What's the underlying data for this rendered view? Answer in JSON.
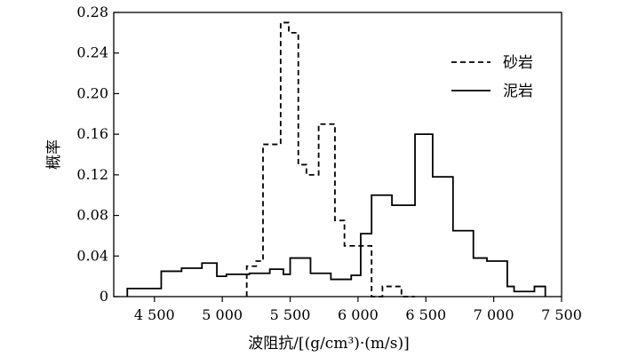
{
  "chart_data": {
    "type": "line",
    "step": true,
    "xlabel": "波阻抗/[(g/cm³)·(m/s)]",
    "ylabel": "概率",
    "xlim": [
      4200,
      7500
    ],
    "ylim": [
      0,
      0.28
    ],
    "xticks": [
      4500,
      5000,
      5500,
      6000,
      6500,
      7000,
      7500
    ],
    "xtick_labels": [
      "4 500",
      "5 000",
      "5 500",
      "6 000",
      "6 500",
      "7 000",
      "7 500"
    ],
    "yticks": [
      0,
      0.04,
      0.08,
      0.12,
      0.16,
      0.2,
      0.24,
      0.28
    ],
    "ytick_labels": [
      "0",
      "0.04",
      "0.08",
      "0.12",
      "0.16",
      "0.20",
      "0.24",
      "0.28"
    ],
    "legend_position": "top-right",
    "series": [
      {
        "name": "砂岩",
        "style": "dashed",
        "bin_edges": [
          5180,
          5250,
          5300,
          5380,
          5430,
          5490,
          5560,
          5620,
          5670,
          5710,
          5780,
          5830,
          5900,
          6010,
          6100,
          6180,
          6320,
          6420
        ],
        "values": [
          0.03,
          0.035,
          0.15,
          0.15,
          0.27,
          0.26,
          0.13,
          0.12,
          0.12,
          0.17,
          0.17,
          0.075,
          0.05,
          0.05,
          0.0,
          0.01,
          0.0
        ]
      },
      {
        "name": "泥岩",
        "style": "solid",
        "bin_edges": [
          4300,
          4420,
          4550,
          4620,
          4700,
          4800,
          4850,
          4910,
          4960,
          5030,
          5120,
          5200,
          5280,
          5350,
          5450,
          5500,
          5580,
          5650,
          5700,
          5800,
          5850,
          5950,
          6020,
          6060,
          6100,
          6170,
          6250,
          6350,
          6420,
          6500,
          6550,
          6650,
          6700,
          6800,
          6850,
          6950,
          7000,
          7100,
          7150,
          7250,
          7300,
          7380
        ],
        "values": [
          0.008,
          0.008,
          0.025,
          0.025,
          0.028,
          0.028,
          0.033,
          0.033,
          0.02,
          0.022,
          0.022,
          0.023,
          0.023,
          0.027,
          0.022,
          0.038,
          0.038,
          0.023,
          0.023,
          0.017,
          0.017,
          0.021,
          0.062,
          0.062,
          0.1,
          0.1,
          0.09,
          0.09,
          0.16,
          0.16,
          0.118,
          0.118,
          0.065,
          0.065,
          0.038,
          0.035,
          0.035,
          0.01,
          0.005,
          0.005,
          0.01
        ]
      }
    ]
  }
}
